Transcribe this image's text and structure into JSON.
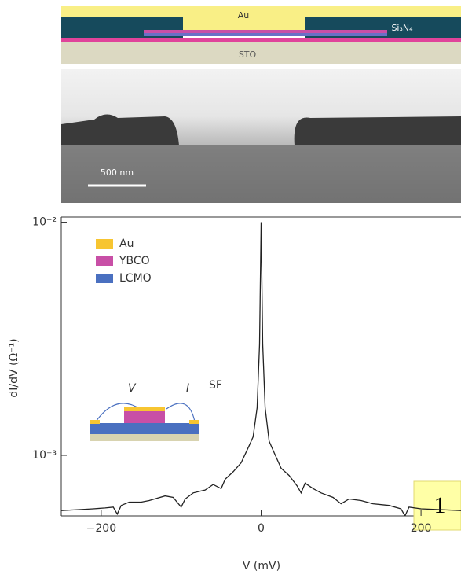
{
  "schematic": {
    "top_layer": "Au",
    "side_layer": "Si₃N₄",
    "substrate": "STO"
  },
  "micrograph": {
    "scale_bar": "500 nm"
  },
  "chart_data": {
    "type": "line",
    "x_label": "V (mV)",
    "y_label": "dI/dV (Ω⁻¹)",
    "x": [
      -250,
      -230,
      -210,
      -195,
      -185,
      -180,
      -175,
      -165,
      -150,
      -140,
      -130,
      -120,
      -110,
      -100,
      -95,
      -85,
      -70,
      -60,
      -50,
      -45,
      -35,
      -25,
      -15,
      -10,
      -5,
      -2,
      0,
      2,
      5,
      10,
      15,
      25,
      35,
      45,
      50,
      55,
      65,
      75,
      90,
      100,
      110,
      125,
      140,
      160,
      175,
      180,
      185,
      200,
      250
    ],
    "series": [
      {
        "color": "#222222",
        "values": [
          0.00058,
          0.000585,
          0.00059,
          0.000595,
          0.0006,
          0.00056,
          0.00061,
          0.00063,
          0.00063,
          0.00064,
          0.000655,
          0.00067,
          0.00066,
          0.0006,
          0.00065,
          0.00069,
          0.00071,
          0.00075,
          0.00072,
          0.00079,
          0.00085,
          0.00093,
          0.0011,
          0.0012,
          0.0016,
          0.003,
          0.01,
          0.003,
          0.0016,
          0.00115,
          0.00105,
          0.00088,
          0.00082,
          0.00074,
          0.00069,
          0.00076,
          0.00072,
          0.00069,
          0.00066,
          0.00062,
          0.00065,
          0.00064,
          0.00062,
          0.00061,
          0.00059,
          0.00055,
          0.0006,
          0.00059,
          0.00058
        ]
      }
    ],
    "xlim": [
      -250,
      250
    ],
    "ylim": [
      0.00055,
      0.0102
    ],
    "log_scale": "y",
    "xticks": [
      {
        "value": -200,
        "label": "−200"
      },
      0,
      200
    ],
    "yticks": [
      {
        "value": 0.01,
        "label": "10⁻²"
      },
      {
        "value": 0.001,
        "label": "10⁻³"
      }
    ],
    "legend": [
      {
        "name": "Au",
        "color": "#f7c531"
      },
      {
        "name": "YBCO",
        "color": "#c84fa6"
      },
      {
        "name": "LCMO",
        "color": "#4a70c0"
      }
    ],
    "inset_labels": [
      "V",
      "I"
    ],
    "annotation": "SF"
  },
  "badge": "1"
}
